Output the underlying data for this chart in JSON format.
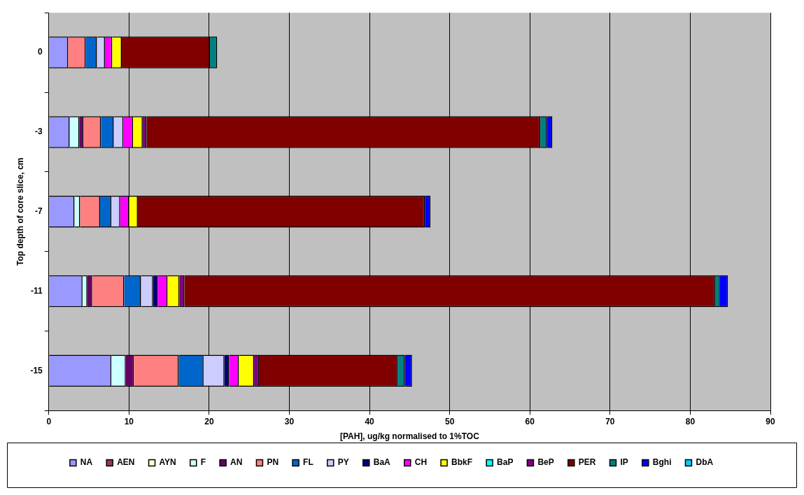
{
  "chart_data": {
    "type": "bar",
    "orientation": "horizontal",
    "stacked": true,
    "xlabel": "[PAH], ug/kg normalised to 1%TOC",
    "ylabel": "Top depth of core slice, cm",
    "categories": [
      "0",
      "-3",
      "-7",
      "-11",
      "-15"
    ],
    "xlim": [
      0,
      90
    ],
    "xticks": [
      0,
      10,
      20,
      30,
      40,
      50,
      60,
      70,
      80,
      90
    ],
    "grid": "x",
    "legend": "bottom",
    "series": [
      {
        "name": "NA",
        "color": "#9999ff",
        "values": [
          2.4,
          2.6,
          3.2,
          4.2,
          7.8
        ]
      },
      {
        "name": "AEN",
        "color": "#993366",
        "values": [
          null,
          null,
          null,
          null,
          null
        ]
      },
      {
        "name": "AYN",
        "color": "#ffffcc",
        "values": [
          null,
          null,
          null,
          null,
          null
        ]
      },
      {
        "name": "F",
        "color": "#ccffff",
        "values": [
          null,
          1.2,
          0.7,
          0.6,
          1.8
        ]
      },
      {
        "name": "AN",
        "color": "#660066",
        "values": [
          null,
          0.5,
          null,
          0.6,
          1.0
        ]
      },
      {
        "name": "PN",
        "color": "#ff8080",
        "values": [
          2.2,
          2.2,
          2.5,
          4.0,
          5.6
        ]
      },
      {
        "name": "FL",
        "color": "#0066cc",
        "values": [
          1.4,
          1.6,
          1.4,
          2.1,
          3.1
        ]
      },
      {
        "name": "PY",
        "color": "#ccccff",
        "values": [
          1.0,
          1.2,
          1.1,
          1.5,
          2.6
        ]
      },
      {
        "name": "BaA",
        "color": "#000080",
        "values": [
          null,
          null,
          null,
          0.6,
          0.6
        ]
      },
      {
        "name": "CH",
        "color": "#ff00ff",
        "values": [
          0.9,
          1.2,
          1.1,
          1.2,
          1.2
        ]
      },
      {
        "name": "BbkF",
        "color": "#ffff00",
        "values": [
          1.2,
          1.2,
          1.1,
          1.5,
          1.9
        ]
      },
      {
        "name": "BaP",
        "color": "#00ffff",
        "values": [
          null,
          null,
          null,
          null,
          null
        ]
      },
      {
        "name": "BeP",
        "color": "#800080",
        "values": [
          null,
          0.5,
          null,
          0.6,
          0.6
        ]
      },
      {
        "name": "PER",
        "color": "#800000",
        "values": [
          11.0,
          49.1,
          35.8,
          66.2,
          17.3
        ]
      },
      {
        "name": "IP",
        "color": "#008080",
        "values": [
          0.9,
          0.8,
          null,
          0.6,
          0.9
        ]
      },
      {
        "name": "Bghi",
        "color": "#0000ff",
        "values": [
          null,
          0.7,
          0.7,
          1.0,
          0.9
        ]
      },
      {
        "name": "DbA",
        "color": "#00ccff",
        "values": [
          null,
          null,
          null,
          null,
          null
        ]
      }
    ]
  }
}
